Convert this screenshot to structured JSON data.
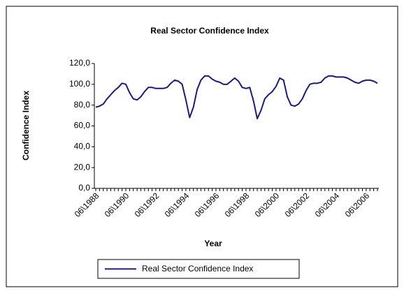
{
  "chart_data": {
    "type": "line",
    "title": "Real Sector Confidence Index",
    "x_label": "Year",
    "y_label": "Confidence Index",
    "categories": [
      "06\\1988",
      null,
      null,
      null,
      null,
      null,
      null,
      null,
      "06\\1990",
      null,
      null,
      null,
      null,
      null,
      null,
      null,
      "06\\1992",
      null,
      null,
      null,
      null,
      null,
      null,
      null,
      "06\\1994",
      null,
      null,
      null,
      null,
      null,
      null,
      null,
      "06\\1996",
      null,
      null,
      null,
      null,
      null,
      null,
      null,
      "06\\1998",
      null,
      null,
      null,
      null,
      null,
      null,
      null,
      "06\\2000",
      null,
      null,
      null,
      null,
      null,
      null,
      null,
      "06\\2002",
      null,
      null,
      null,
      null,
      null,
      null,
      null,
      "06\\2004",
      null,
      null,
      null,
      null,
      null,
      null,
      null,
      "06\\2006",
      null,
      null,
      null
    ],
    "series": [
      {
        "name": "Real Sector Confidence Index",
        "color": "#1a1a80",
        "values": [
          78,
          79,
          81,
          86,
          90,
          94,
          97,
          101,
          100,
          92,
          86,
          85,
          88,
          93,
          97,
          97,
          96,
          96,
          96,
          97,
          101,
          104,
          103,
          100,
          85,
          68,
          78,
          95,
          104,
          108,
          108,
          105,
          103,
          102,
          100,
          100,
          103,
          106,
          103,
          97,
          96,
          97,
          84,
          67,
          75,
          86,
          90,
          93,
          98,
          106,
          104,
          88,
          80,
          79,
          81,
          86,
          94,
          100,
          101,
          101,
          102,
          106,
          108,
          108,
          107,
          107,
          107,
          106,
          104,
          102,
          101,
          103,
          104,
          104,
          103,
          101
        ]
      }
    ],
    "ylim": [
      0,
      120
    ],
    "yticks": [
      {
        "value": 0,
        "label": "0,0"
      },
      {
        "value": 20,
        "label": "20,0"
      },
      {
        "value": 40,
        "label": "40,0"
      },
      {
        "value": 60,
        "label": "60,0"
      },
      {
        "value": 80,
        "label": "80,0"
      },
      {
        "value": 100,
        "label": "100,0"
      },
      {
        "value": 120,
        "label": "120,0"
      }
    ],
    "grid": false,
    "legend": "bottom"
  }
}
